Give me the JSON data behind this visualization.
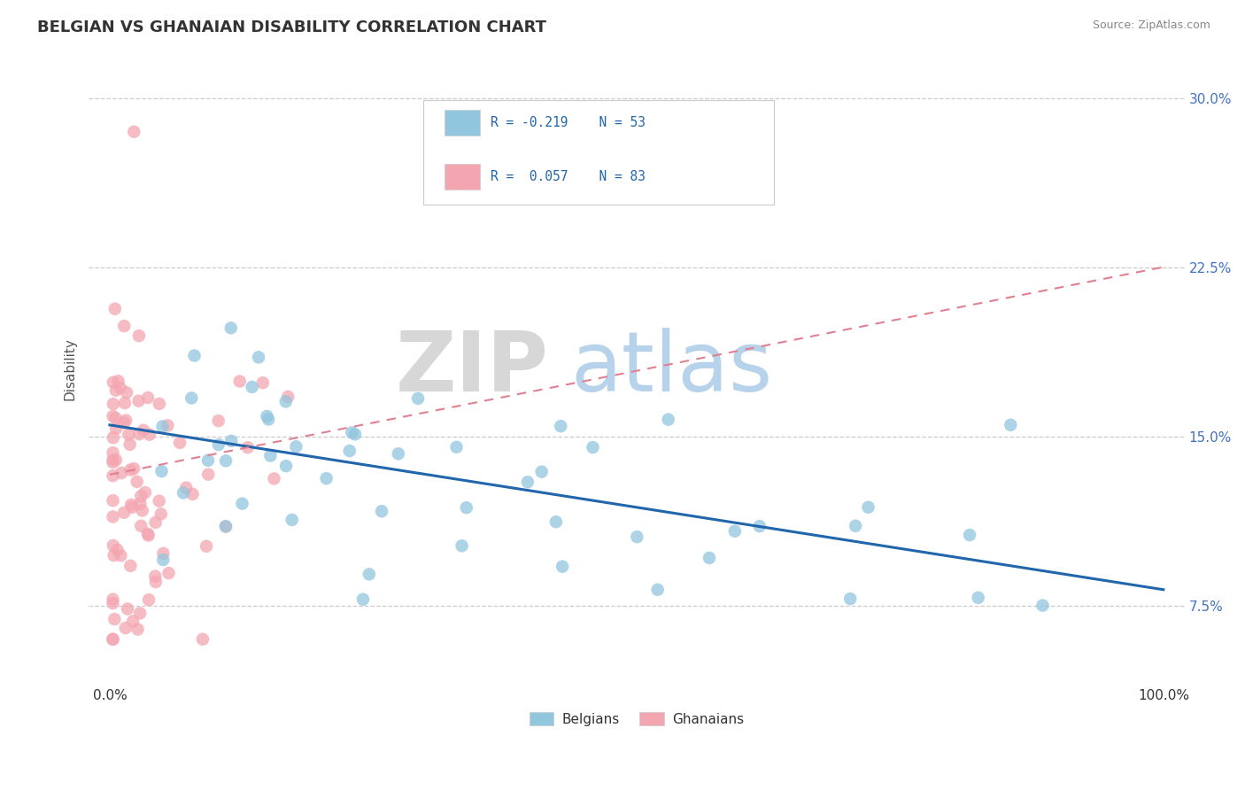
{
  "title": "BELGIAN VS GHANAIAN DISABILITY CORRELATION CHART",
  "source": "Source: ZipAtlas.com",
  "ylabel": "Disability",
  "watermark_zip": "ZIP",
  "watermark_atlas": "atlas",
  "xlim": [
    -0.02,
    1.02
  ],
  "ylim": [
    0.04,
    0.32
  ],
  "yticks": [
    0.075,
    0.15,
    0.225,
    0.3
  ],
  "ytick_labels": [
    "7.5%",
    "15.0%",
    "22.5%",
    "30.0%"
  ],
  "xtick_positions": [
    0.0,
    1.0
  ],
  "xtick_labels": [
    "0.0%",
    "100.0%"
  ],
  "belgian_color": "#92C5DE",
  "ghanaian_color": "#F4A6B0",
  "belgian_line_color": "#2166AC",
  "ghanaian_line_color": "#E08090",
  "grid_color": "#CCCCCC",
  "tick_color": "#4472C4",
  "background_color": "#FFFFFF",
  "title_fontsize": 13,
  "axis_label_fontsize": 11,
  "tick_fontsize": 11,
  "source_fontsize": 9,
  "legend_fontsize": 11
}
